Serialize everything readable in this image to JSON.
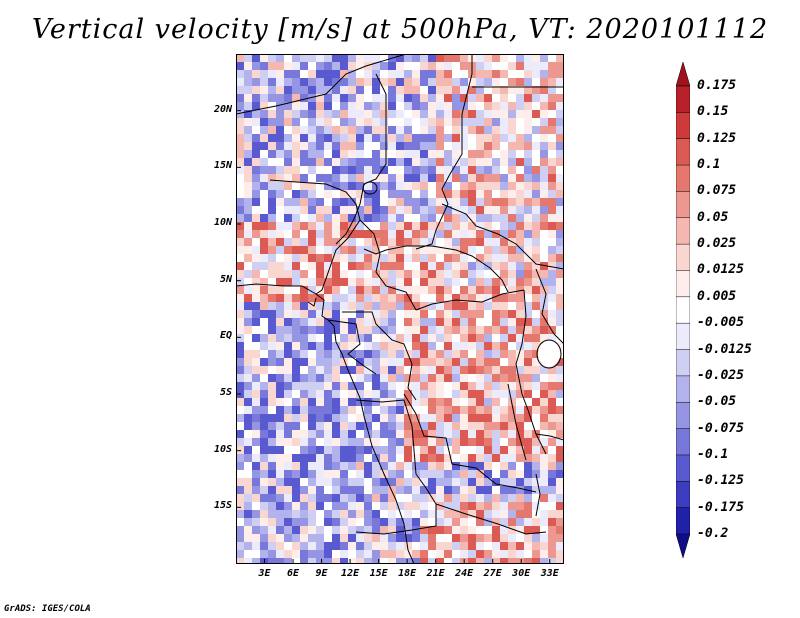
{
  "title": "Vertical velocity [m/s] at 500hPa, VT: 2020101112",
  "map": {
    "lat_labels": [
      "20N",
      "15N",
      "10N",
      "5N",
      "EQ",
      "5S",
      "10S",
      "15S"
    ],
    "lat_values": [
      20,
      15,
      10,
      5,
      0,
      -5,
      -10,
      -15
    ],
    "lat_range": [
      -20,
      25
    ],
    "lon_labels": [
      "3E",
      "6E",
      "9E",
      "12E",
      "15E",
      "18E",
      "21E",
      "24E",
      "27E",
      "30E",
      "33E"
    ],
    "lon_values": [
      3,
      6,
      9,
      12,
      15,
      18,
      21,
      24,
      27,
      30,
      33
    ],
    "lon_range": [
      0,
      34.5
    ],
    "field": "vertical velocity",
    "units": "m/s",
    "level": "500hPa",
    "valid_time": "2020101112"
  },
  "colorbar": {
    "labels": [
      "0.175",
      "0.15",
      "0.125",
      "0.1",
      "0.075",
      "0.05",
      "0.025",
      "0.0125",
      "0.005",
      "-0.005",
      "-0.0125",
      "-0.025",
      "-0.05",
      "-0.075",
      "-0.1",
      "-0.125",
      "-0.175",
      "-0.2"
    ],
    "colors": [
      "#a0121e",
      "#b8202a",
      "#cc3a3a",
      "#dc5a54",
      "#e4786e",
      "#ec9890",
      "#f4b8b0",
      "#fad6d0",
      "#fdeeec",
      "#ffffff",
      "#ebebfb",
      "#cfcff3",
      "#b2b2ec",
      "#9595e4",
      "#7878db",
      "#5a5ad0",
      "#3c3cc0",
      "#2020a8",
      "#0e0e88"
    ]
  },
  "credit": "GrADS: IGES/COLA"
}
